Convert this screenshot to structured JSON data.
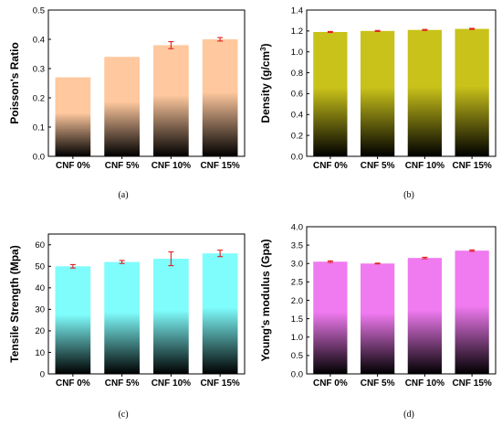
{
  "chart_data": [
    {
      "id": "a",
      "type": "bar",
      "caption": "(a)",
      "ylabel": "Poisson's Ratio",
      "ylabel_sup": "",
      "ylabel_tail": "",
      "categories": [
        "CNF 0%",
        "CNF 5%",
        "CNF 10%",
        "CNF 15%"
      ],
      "values": [
        0.27,
        0.34,
        0.38,
        0.4
      ],
      "errors": [
        0,
        0,
        0.012,
        0.006
      ],
      "ylim": [
        0,
        0.5
      ],
      "yticks": [
        "0.0",
        "0.1",
        "0.2",
        "0.3",
        "0.4",
        "0.5"
      ],
      "gradient": [
        "#ffc89e",
        "#000000"
      ],
      "error_color": "#e02020"
    },
    {
      "id": "b",
      "type": "bar",
      "caption": "(b)",
      "ylabel": "Density (g/cm",
      "ylabel_sup": "3",
      "ylabel_tail": ")",
      "categories": [
        "CNF 0%",
        "CNF 5%",
        "CNF 10%",
        "CNF 15%"
      ],
      "values": [
        1.19,
        1.2,
        1.21,
        1.22
      ],
      "errors": [
        0.005,
        0.005,
        0.005,
        0.005
      ],
      "ylim": [
        0,
        1.4
      ],
      "yticks": [
        "0.0",
        "0.2",
        "0.4",
        "0.6",
        "0.8",
        "1.0",
        "1.2",
        "1.4"
      ],
      "gradient": [
        "#c9c21a",
        "#000000"
      ],
      "error_color": "#e02020"
    },
    {
      "id": "c",
      "type": "bar",
      "caption": "(c)",
      "ylabel": "Tensile Strength (Mpa)",
      "ylabel_sup": "",
      "ylabel_tail": "",
      "categories": [
        "CNF 0%",
        "CNF 5%",
        "CNF 10%",
        "CNF 15%"
      ],
      "values": [
        50,
        52,
        53.5,
        56
      ],
      "errors": [
        0.8,
        0.7,
        3.2,
        1.5
      ],
      "ylim": [
        0,
        65
      ],
      "yticks": [
        "0",
        "10",
        "20",
        "30",
        "40",
        "50",
        "60"
      ],
      "ytick_values": [
        0,
        10,
        20,
        30,
        40,
        50,
        60
      ],
      "gradient": [
        "#7ffcfc",
        "#000000"
      ],
      "error_color": "#e02020"
    },
    {
      "id": "d",
      "type": "bar",
      "caption": "(d)",
      "ylabel": "Young's modulus (Gpa)",
      "ylabel_sup": "",
      "ylabel_tail": "",
      "categories": [
        "CNF 0%",
        "CNF 5%",
        "CNF 10%",
        "CNF 15%"
      ],
      "values": [
        3.05,
        3.0,
        3.15,
        3.35
      ],
      "errors": [
        0.02,
        0.01,
        0.02,
        0.02
      ],
      "ylim": [
        0,
        4.0
      ],
      "yticks": [
        "0.0",
        "0.5",
        "1.0",
        "1.5",
        "2.0",
        "2.5",
        "3.0",
        "3.5",
        "4.0"
      ],
      "gradient": [
        "#f07af0",
        "#000000"
      ],
      "error_color": "#e02020"
    }
  ]
}
